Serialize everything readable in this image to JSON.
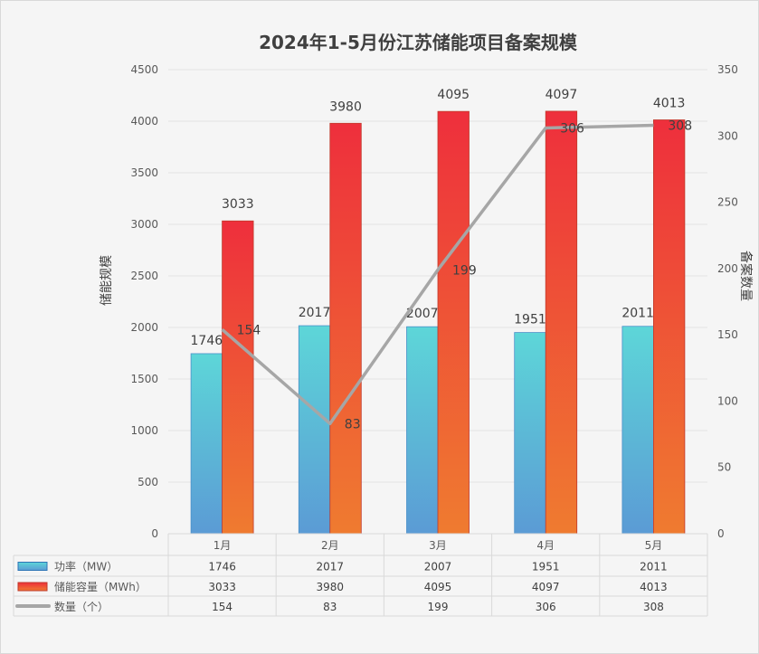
{
  "chart_data": {
    "type": "bar",
    "title": "2024年1-5月份江苏储能项目备案规模",
    "categories": [
      "1月",
      "2月",
      "3月",
      "4月",
      "5月"
    ],
    "series": [
      {
        "name": "功率（MW）",
        "type": "bar",
        "axis": "left",
        "values": [
          1746,
          2017,
          2007,
          1951,
          2011
        ],
        "color_top": "#5dd6d8",
        "color_bottom": "#5b9bd5"
      },
      {
        "name": "储能容量（MWh）",
        "type": "bar",
        "axis": "left",
        "values": [
          3033,
          3980,
          4095,
          4097,
          4013
        ],
        "color_top": "#ee2f3c",
        "color_bottom": "#ef7b30"
      },
      {
        "name": "数量（个）",
        "type": "line",
        "axis": "right",
        "values": [
          154,
          83,
          199,
          306,
          308
        ],
        "color": "#a6a6a6"
      }
    ],
    "ylabel": "储能规模",
    "y2label": "备案数量",
    "ylim": [
      0,
      4500
    ],
    "y2lim": [
      0,
      350
    ],
    "yticks": [
      0,
      500,
      1000,
      1500,
      2000,
      2500,
      3000,
      3500,
      4000,
      4500
    ],
    "y2ticks": [
      0,
      50,
      100,
      150,
      200,
      250,
      300,
      350
    ],
    "grid": true,
    "legend": "data-table"
  }
}
